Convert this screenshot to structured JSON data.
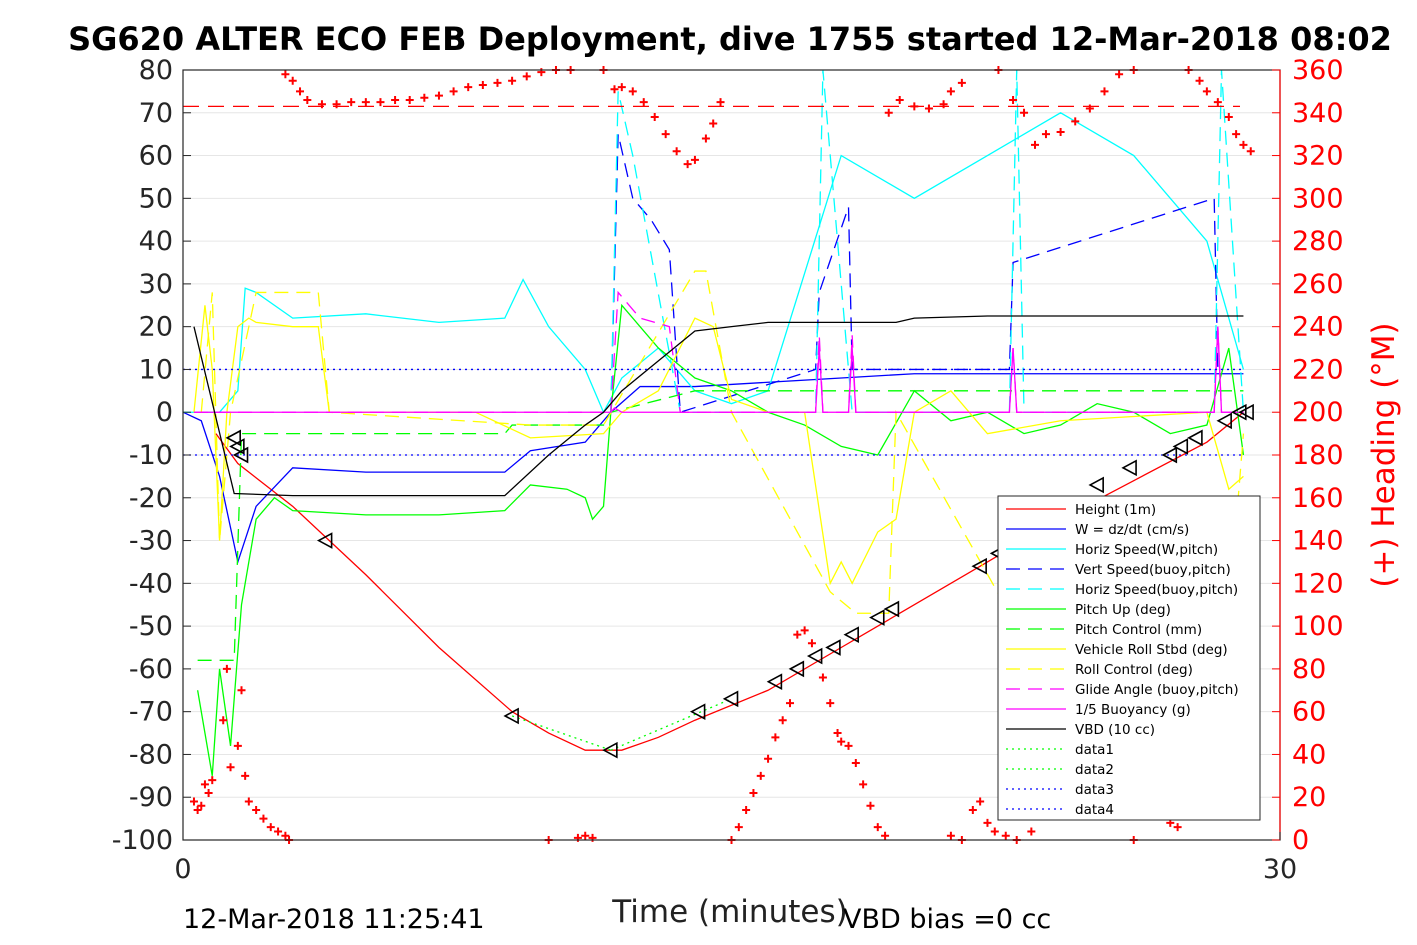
{
  "chart_data": {
    "type": "line",
    "title": "SG620 ALTER ECO FEB Deployment, dive 1755 started 12-Mar-2018 08:02",
    "xlabel": "Time (minutes)",
    "ylabel_right": "(+) Heading (°M)",
    "footer_left": "12-Mar-2018 11:25:41",
    "footer_right": "VBD bias =0 cc",
    "xlim": [
      0,
      30
    ],
    "ylim_left": [
      -100,
      80
    ],
    "ylim_right": [
      0,
      360
    ],
    "x_ticks": [
      0,
      30
    ],
    "y_ticks_left": [
      80,
      70,
      60,
      50,
      40,
      30,
      20,
      10,
      0,
      -10,
      -20,
      -30,
      -40,
      -50,
      -60,
      -70,
      -80,
      -90,
      -100
    ],
    "y_ticks_right": [
      360,
      340,
      320,
      300,
      280,
      260,
      240,
      220,
      200,
      180,
      160,
      140,
      120,
      100,
      80,
      60,
      40,
      20,
      0
    ],
    "grid": true,
    "legend_position": "lower-right",
    "colors": {
      "axis": "#262626",
      "right_axis": "#ff0000",
      "grid": "#e6e6e6",
      "heading_marker": "#ff0000"
    },
    "series": [
      {
        "name": "Height (1m)",
        "color": "#ff0000",
        "dash": "solid",
        "x": [
          0.9,
          1.5,
          3,
          5,
          7,
          9,
          10,
          11,
          12,
          13,
          14,
          16,
          18,
          20,
          22,
          24,
          26,
          28,
          29
        ],
        "y": [
          -5,
          -12,
          -22,
          -38,
          -55,
          -70,
          -75,
          -79,
          -79,
          -76,
          -72,
          -65,
          -55,
          -45,
          -35,
          -25,
          -16,
          -7,
          0
        ]
      },
      {
        "name": "W = dz/dt (cm/s)",
        "color": "#0000ff",
        "dash": "solid",
        "x": [
          0,
          0.5,
          1.0,
          1.5,
          2,
          3,
          5,
          7,
          8.8,
          9.5,
          11,
          11.7,
          12.5,
          14,
          16,
          18,
          20,
          22,
          24,
          26,
          28,
          29
        ],
        "y": [
          0,
          -2,
          -15,
          -35,
          -22,
          -13,
          -14,
          -14,
          -14,
          -9,
          -7,
          0,
          6,
          6,
          7,
          8,
          9,
          9,
          9,
          9,
          9,
          9
        ]
      },
      {
        "name": "Horiz Speed(W,pitch)",
        "color": "#00ffff",
        "dash": "solid",
        "x": [
          0,
          1,
          1.5,
          1.7,
          2,
          3,
          5,
          7,
          8.8,
          9.3,
          10,
          11,
          11.5,
          12,
          13,
          14,
          15,
          16,
          18,
          20,
          22,
          24,
          26,
          28,
          29
        ],
        "y": [
          0,
          0,
          5,
          29,
          28,
          22,
          23,
          21,
          22,
          31,
          20,
          10,
          0,
          8,
          15,
          5,
          2,
          5,
          60,
          50,
          60,
          70,
          60,
          40,
          10
        ]
      },
      {
        "name": "Vert Speed(buoy,pitch)",
        "color": "#0000ff",
        "dash": "dash",
        "x": [
          11.7,
          11.9,
          12.3,
          12.8,
          13.3,
          13.6,
          17.3,
          17.4,
          18.2,
          18.3,
          22.6,
          22.7,
          28.2,
          28.3
        ],
        "y": [
          0,
          65,
          50,
          45,
          38,
          0,
          10,
          28,
          48,
          10,
          10,
          35,
          50,
          10
        ]
      },
      {
        "name": "Horiz Speed(buoy,pitch)",
        "color": "#00ffff",
        "dash": "dash",
        "x": [
          11.7,
          11.9,
          12.3,
          13.6,
          17.3,
          17.5,
          18.3,
          22.6,
          22.8,
          23,
          28.2,
          28.4,
          29
        ],
        "y": [
          0,
          75,
          60,
          0,
          0,
          80,
          0,
          0,
          80,
          0,
          0,
          80,
          0
        ]
      },
      {
        "name": "Pitch Up (deg)",
        "color": "#00ff00",
        "dash": "solid",
        "x": [
          0.4,
          0.8,
          1.0,
          1.3,
          1.6,
          2,
          2.5,
          3,
          5,
          7,
          8.8,
          9.5,
          10.5,
          11,
          11.2,
          11.5,
          11.7,
          12,
          13,
          14,
          15,
          16,
          17,
          18,
          19,
          20,
          21,
          22,
          23,
          24,
          25,
          26,
          27,
          28,
          28.6,
          29
        ],
        "y": [
          -65,
          -85,
          -60,
          -78,
          -45,
          -25,
          -20,
          -23,
          -24,
          -24,
          -23,
          -17,
          -18,
          -20,
          -25,
          -22,
          0,
          25,
          15,
          8,
          5,
          0,
          -3,
          -8,
          -10,
          5,
          -2,
          0,
          -5,
          -3,
          2,
          0,
          -5,
          -3,
          15,
          -10
        ]
      },
      {
        "name": "Pitch Control (mm)",
        "color": "#00ff00",
        "dash": "dash",
        "x": [
          0.4,
          1.4,
          1.6,
          2,
          3,
          5,
          8.8,
          9.0,
          11.5,
          11.7,
          14,
          29
        ],
        "y": [
          -58,
          -58,
          -5,
          -5,
          -5,
          -5,
          -5,
          -3,
          -3,
          0,
          5,
          5
        ]
      },
      {
        "name": "Vehicle Roll Stbd (deg)",
        "color": "#ffff00",
        "dash": "solid",
        "x": [
          0.3,
          0.6,
          0.8,
          1.0,
          1.2,
          1.5,
          1.8,
          2,
          3,
          3.7,
          4,
          5,
          8,
          9.5,
          11.5,
          12,
          13,
          14,
          14.5,
          15,
          16,
          17,
          17.7,
          18,
          18.3,
          19,
          19.5,
          20,
          21,
          22,
          24,
          26,
          28,
          28.6,
          29
        ],
        "y": [
          0,
          25,
          10,
          -30,
          0,
          20,
          22,
          21,
          20,
          20,
          0,
          0,
          0,
          -6,
          -5,
          0,
          5,
          22,
          20,
          3,
          0,
          0,
          -40,
          -35,
          -40,
          -28,
          -25,
          0,
          5,
          -5,
          -2,
          -1,
          0,
          -18,
          -15
        ]
      },
      {
        "name": "Roll Control (deg)",
        "color": "#ffff00",
        "dash": "dash",
        "x": [
          0.5,
          0.8,
          1.0,
          1.3,
          2,
          3,
          3.7,
          4,
          9.5,
          11.5,
          14,
          14.3,
          15,
          17.7,
          18.4,
          19.3,
          19.5,
          22.6,
          28.6,
          29
        ],
        "y": [
          0,
          28,
          -30,
          0,
          28,
          28,
          28,
          0,
          -3,
          -3,
          33,
          33,
          0,
          -42,
          -47,
          -47,
          0,
          -47,
          -47,
          -5
        ]
      },
      {
        "name": "Glide Angle (buoy,pitch)",
        "color": "#ff00ff",
        "dash": "dash",
        "x": [
          0.3,
          11.7,
          11.9,
          12.5,
          13.3,
          13.6,
          17.3,
          17.4,
          17.5,
          18.2,
          18.3,
          18.4,
          22.6,
          22.7,
          22.8,
          28.2,
          28.3,
          28.4,
          29
        ],
        "y": [
          0,
          0,
          28,
          22,
          20,
          0,
          0,
          18,
          0,
          0,
          18,
          0,
          0,
          15,
          0,
          0,
          20,
          0,
          0
        ]
      },
      {
        "name": "1/5 Buoyancy (g)",
        "color": "#ff00ff",
        "dash": "solid",
        "x": [
          0.3,
          11.7,
          11.8,
          12,
          17.3,
          17.4,
          17.5,
          18.2,
          18.3,
          18.4,
          22.6,
          22.7,
          22.8,
          28.2,
          28.3,
          28.4,
          29
        ],
        "y": [
          0,
          0,
          1,
          0,
          0,
          15,
          0,
          0,
          15,
          0,
          0,
          15,
          0,
          0,
          20,
          0,
          0
        ]
      },
      {
        "name": "VBD (10 cc)",
        "color": "#000000",
        "dash": "solid",
        "x": [
          0.3,
          1.4,
          3,
          5,
          7,
          8.8,
          10,
          11,
          11.5,
          12,
          13,
          14,
          15,
          16,
          18,
          19.5,
          20,
          22,
          24,
          26,
          29
        ],
        "y": [
          20,
          -19,
          -19.5,
          -19.5,
          -19.5,
          -19.5,
          -10,
          -3,
          0,
          5,
          12,
          19,
          20,
          21,
          21,
          21,
          22,
          22.5,
          22.5,
          22.5,
          22.5
        ]
      },
      {
        "name": "data1",
        "color": "#00ff00",
        "dash": "dot",
        "x": [
          9.0,
          11.7
        ],
        "y": [
          -71,
          -79
        ]
      },
      {
        "name": "data2",
        "color": "#00ff00",
        "dash": "dot",
        "x": [
          11.7,
          15.0
        ],
        "y": [
          -79,
          -67
        ]
      },
      {
        "name": "data3",
        "color": "#0000ff",
        "dash": "dot",
        "x": [
          0,
          29
        ],
        "y": [
          10,
          10
        ]
      },
      {
        "name": "data4",
        "color": "#0000ff",
        "dash": "dot",
        "x": [
          0,
          29
        ],
        "y": [
          -10,
          -10
        ]
      }
    ],
    "heading_desired": 343,
    "heading_points": [
      {
        "x": 0.3,
        "y": 18
      },
      {
        "x": 0.4,
        "y": 14
      },
      {
        "x": 0.5,
        "y": 16
      },
      {
        "x": 0.6,
        "y": 26
      },
      {
        "x": 0.7,
        "y": 22
      },
      {
        "x": 0.8,
        "y": 28
      },
      {
        "x": 1.1,
        "y": 56
      },
      {
        "x": 1.2,
        "y": 80
      },
      {
        "x": 1.3,
        "y": 34
      },
      {
        "x": 1.5,
        "y": 44
      },
      {
        "x": 1.6,
        "y": 70
      },
      {
        "x": 1.7,
        "y": 30
      },
      {
        "x": 1.8,
        "y": 18
      },
      {
        "x": 2.0,
        "y": 14
      },
      {
        "x": 2.2,
        "y": 10
      },
      {
        "x": 2.4,
        "y": 6
      },
      {
        "x": 2.6,
        "y": 4
      },
      {
        "x": 2.8,
        "y": 2
      },
      {
        "x": 2.9,
        "y": 0
      },
      {
        "x": 2.8,
        "y": 358
      },
      {
        "x": 3.0,
        "y": 355
      },
      {
        "x": 3.2,
        "y": 350
      },
      {
        "x": 3.4,
        "y": 346
      },
      {
        "x": 3.8,
        "y": 344
      },
      {
        "x": 4.2,
        "y": 344
      },
      {
        "x": 4.6,
        "y": 345
      },
      {
        "x": 5.0,
        "y": 345
      },
      {
        "x": 5.4,
        "y": 345
      },
      {
        "x": 5.8,
        "y": 346
      },
      {
        "x": 6.2,
        "y": 346
      },
      {
        "x": 6.6,
        "y": 347
      },
      {
        "x": 7.0,
        "y": 348
      },
      {
        "x": 7.4,
        "y": 350
      },
      {
        "x": 7.8,
        "y": 352
      },
      {
        "x": 8.2,
        "y": 353
      },
      {
        "x": 8.6,
        "y": 354
      },
      {
        "x": 9.0,
        "y": 355
      },
      {
        "x": 9.4,
        "y": 357
      },
      {
        "x": 9.8,
        "y": 359
      },
      {
        "x": 10.2,
        "y": 360
      },
      {
        "x": 10.6,
        "y": 360
      },
      {
        "x": 10.0,
        "y": 0
      },
      {
        "x": 10.8,
        "y": 1
      },
      {
        "x": 11.0,
        "y": 2
      },
      {
        "x": 11.2,
        "y": 1
      },
      {
        "x": 11.5,
        "y": 360
      },
      {
        "x": 11.8,
        "y": 351
      },
      {
        "x": 12.0,
        "y": 352
      },
      {
        "x": 12.3,
        "y": 350
      },
      {
        "x": 12.6,
        "y": 345
      },
      {
        "x": 12.9,
        "y": 338
      },
      {
        "x": 13.2,
        "y": 330
      },
      {
        "x": 13.5,
        "y": 322
      },
      {
        "x": 13.8,
        "y": 316
      },
      {
        "x": 14.0,
        "y": 318
      },
      {
        "x": 14.3,
        "y": 328
      },
      {
        "x": 14.5,
        "y": 335
      },
      {
        "x": 14.7,
        "y": 345
      },
      {
        "x": 15.0,
        "y": 0
      },
      {
        "x": 15.2,
        "y": 6
      },
      {
        "x": 15.4,
        "y": 14
      },
      {
        "x": 15.6,
        "y": 22
      },
      {
        "x": 15.8,
        "y": 30
      },
      {
        "x": 16.0,
        "y": 38
      },
      {
        "x": 16.2,
        "y": 48
      },
      {
        "x": 16.4,
        "y": 56
      },
      {
        "x": 16.6,
        "y": 64
      },
      {
        "x": 16.8,
        "y": 96
      },
      {
        "x": 17.0,
        "y": 98
      },
      {
        "x": 17.2,
        "y": 92
      },
      {
        "x": 17.5,
        "y": 76
      },
      {
        "x": 17.7,
        "y": 64
      },
      {
        "x": 17.9,
        "y": 50
      },
      {
        "x": 18.0,
        "y": 46
      },
      {
        "x": 18.2,
        "y": 44
      },
      {
        "x": 18.4,
        "y": 36
      },
      {
        "x": 18.6,
        "y": 26
      },
      {
        "x": 18.8,
        "y": 16
      },
      {
        "x": 19.0,
        "y": 6
      },
      {
        "x": 19.2,
        "y": 2
      },
      {
        "x": 19.3,
        "y": 340
      },
      {
        "x": 19.6,
        "y": 346
      },
      {
        "x": 20.0,
        "y": 343
      },
      {
        "x": 20.4,
        "y": 342
      },
      {
        "x": 20.8,
        "y": 344
      },
      {
        "x": 21.0,
        "y": 350
      },
      {
        "x": 21.3,
        "y": 354
      },
      {
        "x": 21.0,
        "y": 2
      },
      {
        "x": 21.3,
        "y": 0
      },
      {
        "x": 21.6,
        "y": 14
      },
      {
        "x": 21.8,
        "y": 18
      },
      {
        "x": 22.0,
        "y": 8
      },
      {
        "x": 22.2,
        "y": 4
      },
      {
        "x": 22.5,
        "y": 2
      },
      {
        "x": 22.8,
        "y": 0
      },
      {
        "x": 23.2,
        "y": 4
      },
      {
        "x": 22.3,
        "y": 360
      },
      {
        "x": 22.7,
        "y": 346
      },
      {
        "x": 23.0,
        "y": 340
      },
      {
        "x": 23.3,
        "y": 325
      },
      {
        "x": 23.6,
        "y": 330
      },
      {
        "x": 24.0,
        "y": 331
      },
      {
        "x": 24.4,
        "y": 336
      },
      {
        "x": 24.8,
        "y": 342
      },
      {
        "x": 25.2,
        "y": 350
      },
      {
        "x": 25.6,
        "y": 358
      },
      {
        "x": 26.0,
        "y": 360
      },
      {
        "x": 26.0,
        "y": 0
      },
      {
        "x": 27.0,
        "y": 8
      },
      {
        "x": 27.2,
        "y": 6
      },
      {
        "x": 27.5,
        "y": 360
      },
      {
        "x": 27.8,
        "y": 355
      },
      {
        "x": 28.0,
        "y": 350
      },
      {
        "x": 28.3,
        "y": 345
      },
      {
        "x": 28.6,
        "y": 338
      },
      {
        "x": 28.8,
        "y": 330
      },
      {
        "x": 29.0,
        "y": 325
      },
      {
        "x": 29.2,
        "y": 322
      }
    ],
    "triangles": [
      {
        "x": 1.4,
        "y": -6
      },
      {
        "x": 1.5,
        "y": -8
      },
      {
        "x": 1.6,
        "y": -10
      },
      {
        "x": 3.9,
        "y": -30
      },
      {
        "x": 9.0,
        "y": -71
      },
      {
        "x": 11.7,
        "y": -79
      },
      {
        "x": 14.1,
        "y": -70
      },
      {
        "x": 15.0,
        "y": -67
      },
      {
        "x": 16.2,
        "y": -63
      },
      {
        "x": 16.8,
        "y": -60
      },
      {
        "x": 17.3,
        "y": -57
      },
      {
        "x": 17.8,
        "y": -55
      },
      {
        "x": 18.3,
        "y": -52
      },
      {
        "x": 19.0,
        "y": -48
      },
      {
        "x": 19.4,
        "y": -46
      },
      {
        "x": 21.8,
        "y": -36
      },
      {
        "x": 22.3,
        "y": -33
      },
      {
        "x": 25.0,
        "y": -17
      },
      {
        "x": 25.9,
        "y": -13
      },
      {
        "x": 27.0,
        "y": -10
      },
      {
        "x": 27.3,
        "y": -8
      },
      {
        "x": 27.7,
        "y": -6
      },
      {
        "x": 28.5,
        "y": -2
      },
      {
        "x": 28.9,
        "y": 0
      },
      {
        "x": 29.1,
        "y": 0
      }
    ]
  }
}
